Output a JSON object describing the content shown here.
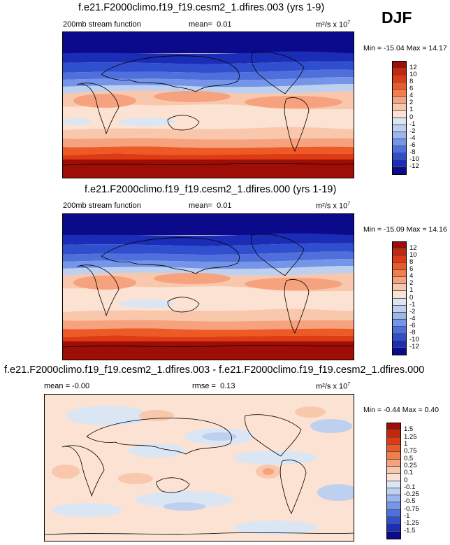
{
  "season": "DJF",
  "chart_data": [
    {
      "type": "heatmap",
      "title": "f.e21.F2000climo.f19_f19.cesm2_1.dfires.003 (yrs 1-9)",
      "left_label": "200mb stream function",
      "mean_label": "mean=",
      "mean_value": "0.01",
      "units_label": "m²/s x 10",
      "units_exp": "7",
      "minmax_text": "Min = -15.04 Max =  14.17",
      "min": -15.04,
      "max": 14.17,
      "colorbar_levels": [
        "12",
        "10",
        "8",
        "6",
        "4",
        "2",
        "1",
        "0",
        "-1",
        "-2",
        "-4",
        "-6",
        "-8",
        "-10",
        "-12"
      ],
      "colorbar_colors": [
        "#9e0e06",
        "#c8260c",
        "#de3b14",
        "#ed5a26",
        "#f47d4e",
        "#f7a27e",
        "#f9c7ac",
        "#fbe2d2",
        "#dbe6f5",
        "#bdd0f0",
        "#9bb6ee",
        "#7595e8",
        "#4f70dc",
        "#2f4fcf",
        "#1b2cb6",
        "#0a0a8a"
      ]
    },
    {
      "type": "heatmap",
      "title": "f.e21.F2000climo.f19_f19.cesm2_1.dfires.000 (yrs 1-19)",
      "left_label": "200mb stream function",
      "mean_label": "mean=",
      "mean_value": "0.01",
      "units_label": "m²/s x 10",
      "units_exp": "7",
      "minmax_text": "Min = -15.09 Max =  14.16",
      "min": -15.09,
      "max": 14.16,
      "colorbar_levels": [
        "12",
        "10",
        "8",
        "6",
        "4",
        "2",
        "1",
        "0",
        "-1",
        "-2",
        "-4",
        "-6",
        "-8",
        "-10",
        "-12"
      ],
      "colorbar_colors": [
        "#9e0e06",
        "#c8260c",
        "#de3b14",
        "#ed5a26",
        "#f47d4e",
        "#f7a27e",
        "#f9c7ac",
        "#fbe2d2",
        "#dbe6f5",
        "#bdd0f0",
        "#9bb6ee",
        "#7595e8",
        "#4f70dc",
        "#2f4fcf",
        "#1b2cb6",
        "#0a0a8a"
      ]
    },
    {
      "type": "heatmap",
      "title": "f.e21.F2000climo.f19_f19.cesm2_1.dfires.003 - f.e21.F2000climo.f19_f19.cesm2_1.dfires.000",
      "left_label": "mean =  -0.00",
      "mean_label": "rmse =",
      "mean_value": "0.13",
      "units_label": "m²/s x 10",
      "units_exp": "7",
      "minmax_text": "Min = -0.44 Max =  0.40",
      "min": -0.44,
      "max": 0.4,
      "colorbar_levels": [
        "1.5",
        "1.25",
        "1",
        "0.75",
        "0.5",
        "0.25",
        "0.1",
        "0",
        "-0.1",
        "-0.25",
        "-0.5",
        "-0.75",
        "-1",
        "-1.25",
        "-1.5"
      ],
      "colorbar_colors": [
        "#9e0e06",
        "#c8260c",
        "#de3b14",
        "#ed5a26",
        "#f47d4e",
        "#f7a27e",
        "#f9c7ac",
        "#fbe2d2",
        "#dbe6f5",
        "#bdd0f0",
        "#9bb6ee",
        "#7595e8",
        "#4f70dc",
        "#2f4fcf",
        "#1b2cb6",
        "#0a0a8a"
      ]
    }
  ]
}
